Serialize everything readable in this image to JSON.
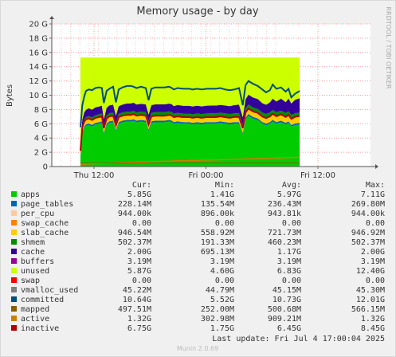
{
  "chart_data": {
    "type": "area",
    "title": "Memory usage - by day",
    "ylabel": "Bytes",
    "side_label": "RRDTOOL / TOBI OETIKER",
    "ylim": [
      0,
      20
    ],
    "y_ticks": [
      "0",
      "2 G",
      "4 G",
      "6 G",
      "8 G",
      "10 G",
      "12 G",
      "14 G",
      "16 G",
      "18 G",
      "20 G"
    ],
    "x_ticks": [
      "Thu 12:00",
      "Fri 00:00",
      "Fri 12:00"
    ],
    "x_hours": [
      0,
      12,
      24,
      36,
      48
    ],
    "x_range_hours": [
      0,
      48
    ],
    "columns": [
      "Cur:",
      "Min:",
      "Avg:",
      "Max:"
    ],
    "series": [
      {
        "name": "apps",
        "color": "#00cc00",
        "cur": "5.85G",
        "min": "1.41G",
        "avg": "5.97G",
        "max": "7.11G"
      },
      {
        "name": "page_tables",
        "color": "#0066b3",
        "cur": "228.14M",
        "min": "135.54M",
        "avg": "236.43M",
        "max": "269.80M"
      },
      {
        "name": "per_cpu",
        "color": "#ffcc99",
        "cur": "944.00k",
        "min": "896.00k",
        "avg": "943.81k",
        "max": "944.00k"
      },
      {
        "name": "swap_cache",
        "color": "#ff8000",
        "cur": "0.00",
        "min": "0.00",
        "avg": "0.00",
        "max": "0.00"
      },
      {
        "name": "slab_cache",
        "color": "#ffcc00",
        "cur": "946.54M",
        "min": "558.92M",
        "avg": "721.73M",
        "max": "946.92M"
      },
      {
        "name": "shmem",
        "color": "#008f00",
        "cur": "502.37M",
        "min": "191.33M",
        "avg": "460.23M",
        "max": "502.37M"
      },
      {
        "name": "cache",
        "color": "#330099",
        "cur": "2.00G",
        "min": "695.13M",
        "avg": "1.17G",
        "max": "2.00G"
      },
      {
        "name": "buffers",
        "color": "#990099",
        "cur": "3.19M",
        "min": "3.19M",
        "avg": "3.19M",
        "max": "3.19M"
      },
      {
        "name": "unused",
        "color": "#ccff00",
        "cur": "5.87G",
        "min": "4.60G",
        "avg": "6.83G",
        "max": "12.40G"
      },
      {
        "name": "swap",
        "color": "#ff0000",
        "cur": "0.00",
        "min": "0.00",
        "avg": "0.00",
        "max": "0.00"
      },
      {
        "name": "vmalloc_used",
        "color": "#808080",
        "cur": "45.22M",
        "min": "44.79M",
        "avg": "45.15M",
        "max": "45.30M"
      },
      {
        "name": "committed",
        "color": "#004d80",
        "cur": "10.64G",
        "min": "5.52G",
        "avg": "10.73G",
        "max": "12.01G"
      },
      {
        "name": "mapped",
        "color": "#8c5c00",
        "cur": "497.51M",
        "min": "252.00M",
        "avg": "500.68M",
        "max": "566.15M"
      },
      {
        "name": "active",
        "color": "#cc8000",
        "cur": "1.32G",
        "min": "302.98M",
        "avg": "909.21M",
        "max": "1.32G"
      },
      {
        "name": "inactive",
        "color": "#b30000",
        "cur": "6.75G",
        "min": "1.75G",
        "avg": "6.45G",
        "max": "8.45G"
      }
    ],
    "profile": {
      "t": [
        0,
        0.4,
        0.8,
        1.2,
        1.8,
        2.5,
        3.2,
        4,
        4.6,
        5,
        5.6,
        6.2,
        7,
        7.6,
        8.2,
        9,
        10,
        10.8,
        11.4,
        12,
        13,
        14,
        14.6,
        15.2,
        16,
        17,
        18,
        19,
        19.6,
        20,
        20.8,
        22,
        23.4,
        24,
        25,
        26,
        27,
        28,
        29,
        30,
        31,
        32,
        33,
        34,
        34.8,
        35.4,
        36,
        37,
        38,
        39,
        39.8,
        40.6,
        41.2,
        42,
        43,
        44,
        44.6,
        45.2,
        46,
        47
      ],
      "apps": [
        1.4,
        4.6,
        5.4,
        5.7,
        5.8,
        5.6,
        5.9,
        6.0,
        6.1,
        4.5,
        5.8,
        6.1,
        6.2,
        4.9,
        6.0,
        6.2,
        6.3,
        6.3,
        6.4,
        6.2,
        6.3,
        6.2,
        5.0,
        6.1,
        6.2,
        6.2,
        6.2,
        6.3,
        6.2,
        6.0,
        6.1,
        6.0,
        6.0,
        5.9,
        6.0,
        5.9,
        6.0,
        6.0,
        6.0,
        6.1,
        6.0,
        5.9,
        6.0,
        6.0,
        4.5,
        6.6,
        7.1,
        6.7,
        6.5,
        6.0,
        5.8,
        6.0,
        6.3,
        6.0,
        6.2,
        5.9,
        6.1,
        5.6,
        5.8,
        5.9
      ],
      "page_tables": [
        0.14,
        0.2,
        0.22,
        0.22,
        0.23,
        0.23,
        0.23,
        0.24,
        0.24,
        0.2,
        0.23,
        0.24,
        0.24,
        0.21,
        0.24,
        0.24,
        0.24,
        0.24,
        0.24,
        0.24,
        0.24,
        0.24,
        0.21,
        0.24,
        0.24,
        0.24,
        0.24,
        0.24,
        0.24,
        0.24,
        0.24,
        0.24,
        0.24,
        0.23,
        0.24,
        0.24,
        0.24,
        0.24,
        0.24,
        0.24,
        0.24,
        0.24,
        0.24,
        0.24,
        0.2,
        0.26,
        0.27,
        0.26,
        0.25,
        0.24,
        0.23,
        0.24,
        0.25,
        0.24,
        0.24,
        0.23,
        0.24,
        0.22,
        0.23,
        0.23
      ],
      "slab_cache": [
        0.56,
        0.6,
        0.62,
        0.63,
        0.64,
        0.64,
        0.65,
        0.66,
        0.66,
        0.64,
        0.67,
        0.68,
        0.68,
        0.66,
        0.68,
        0.69,
        0.7,
        0.7,
        0.7,
        0.7,
        0.71,
        0.71,
        0.69,
        0.71,
        0.72,
        0.72,
        0.72,
        0.73,
        0.73,
        0.72,
        0.73,
        0.73,
        0.73,
        0.73,
        0.74,
        0.74,
        0.74,
        0.75,
        0.75,
        0.75,
        0.76,
        0.76,
        0.76,
        0.77,
        0.74,
        0.8,
        0.82,
        0.83,
        0.84,
        0.85,
        0.85,
        0.86,
        0.87,
        0.88,
        0.89,
        0.9,
        0.91,
        0.92,
        0.93,
        0.95
      ],
      "shmem": [
        0.19,
        0.3,
        0.36,
        0.38,
        0.4,
        0.41,
        0.42,
        0.43,
        0.44,
        0.4,
        0.44,
        0.45,
        0.45,
        0.42,
        0.45,
        0.46,
        0.46,
        0.46,
        0.46,
        0.46,
        0.46,
        0.46,
        0.43,
        0.46,
        0.46,
        0.46,
        0.46,
        0.46,
        0.46,
        0.46,
        0.46,
        0.46,
        0.46,
        0.46,
        0.46,
        0.46,
        0.46,
        0.46,
        0.46,
        0.46,
        0.46,
        0.46,
        0.46,
        0.47,
        0.45,
        0.48,
        0.49,
        0.49,
        0.49,
        0.49,
        0.49,
        0.49,
        0.5,
        0.5,
        0.5,
        0.5,
        0.5,
        0.5,
        0.5,
        0.5
      ],
      "cache": [
        0.7,
        0.9,
        1.0,
        1.05,
        1.1,
        1.1,
        1.1,
        1.1,
        1.1,
        0.9,
        1.1,
        1.1,
        1.1,
        0.95,
        1.1,
        1.1,
        1.15,
        1.15,
        1.15,
        1.1,
        1.1,
        1.1,
        0.95,
        1.1,
        1.1,
        1.1,
        1.1,
        1.1,
        1.1,
        1.05,
        1.1,
        1.1,
        1.1,
        1.1,
        1.1,
        1.1,
        1.1,
        1.1,
        1.1,
        1.1,
        1.1,
        1.1,
        1.15,
        1.2,
        1.0,
        1.3,
        1.4,
        1.4,
        1.4,
        1.3,
        1.3,
        1.4,
        1.6,
        1.5,
        1.7,
        1.5,
        1.8,
        1.6,
        1.9,
        2.0
      ],
      "committed": [
        5.52,
        8.6,
        9.8,
        10.6,
        10.8,
        10.7,
        11.0,
        11.1,
        11.0,
        8.9,
        10.6,
        10.9,
        11.2,
        9.0,
        10.8,
        11.1,
        11.3,
        11.3,
        11.2,
        11.0,
        11.2,
        11.0,
        9.3,
        10.9,
        11.1,
        11.1,
        11.1,
        11.2,
        11.0,
        10.8,
        11.0,
        10.9,
        10.9,
        10.8,
        10.9,
        10.8,
        10.9,
        10.9,
        10.9,
        11.0,
        10.8,
        10.7,
        10.8,
        11.0,
        8.6,
        11.4,
        12.0,
        11.6,
        11.3,
        10.8,
        10.4,
        10.7,
        11.5,
        10.9,
        11.1,
        10.5,
        10.9,
        9.7,
        10.2,
        10.6
      ]
    },
    "unused_top": 15.3,
    "last_update": "Last update: Fri Jul  4 17:00:04 2025",
    "footer": "Munin 2.0.69"
  }
}
